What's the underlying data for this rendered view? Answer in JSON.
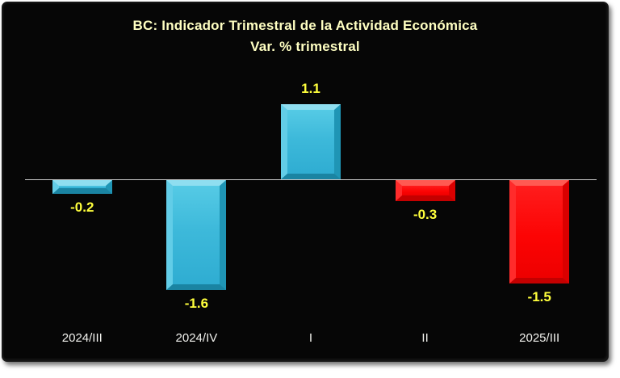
{
  "chart": {
    "title": "BC: Indicador Trimestral de la Actividad Económica",
    "subtitle": "Var. % trimestral"
  },
  "chart_data": {
    "type": "bar",
    "title": "BC: Indicador Trimestral de la Actividad Económica",
    "subtitle": "Var. % trimestral",
    "categories": [
      "2024/III",
      "2024/IV",
      "I",
      "II",
      "2025/III"
    ],
    "values": [
      -0.2,
      -1.6,
      1.1,
      -0.3,
      -1.5
    ],
    "value_labels": [
      "-0.2",
      "-1.6",
      "1.1",
      "-0.3",
      "-1.5"
    ],
    "bar_colors": [
      "#3FBCDC",
      "#3FBCDC",
      "#3FBCDC",
      "#FF0000",
      "#FF0000"
    ],
    "xlabel": "",
    "ylabel": "",
    "ylim": [
      -2.0,
      1.5
    ],
    "grid": false,
    "legend": false,
    "zero_baseline": true,
    "colors": {
      "cyan_bar": "#3FBCDC",
      "red_bar": "#FF0000",
      "title_text": "#FFFFC2",
      "value_label_text": "#FFFF3C",
      "axis_label_text": "#F2F2EE",
      "zero_line": "#C9C9C9",
      "background": "#060606"
    }
  }
}
